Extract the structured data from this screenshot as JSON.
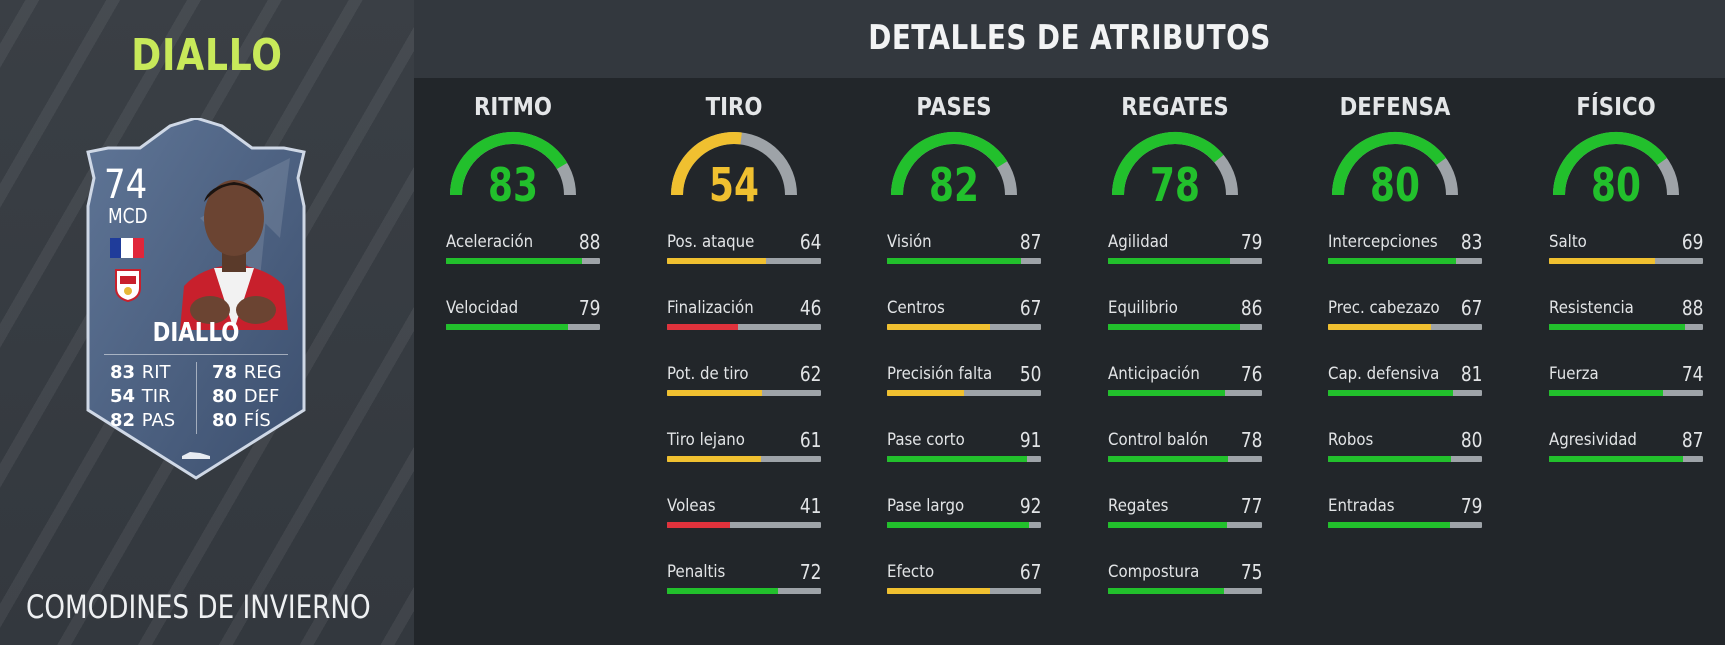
{
  "player": {
    "name": "DIALLO",
    "promo": "COMODINES DE INVIERNO",
    "card": {
      "rating": "74",
      "position": "MCD",
      "name": "DIALLO",
      "stats_left": [
        {
          "value": "83",
          "label": "RIT"
        },
        {
          "value": "54",
          "label": "TIR"
        },
        {
          "value": "82",
          "label": "PAS"
        }
      ],
      "stats_right": [
        {
          "value": "78",
          "label": "REG"
        },
        {
          "value": "80",
          "label": "DEF"
        },
        {
          "value": "80",
          "label": "FÍS"
        }
      ]
    }
  },
  "header": {
    "title": "DETALLES DE ATRIBUTOS"
  },
  "colors": {
    "green": "#22c02c",
    "yellow": "#f0c030",
    "red": "#e0323c",
    "track": "#9ea3a8"
  },
  "groups": [
    {
      "title": "RITMO",
      "value": 83,
      "attributes": [
        {
          "label": "Aceleración",
          "value": 88
        },
        {
          "label": "Velocidad",
          "value": 79
        }
      ]
    },
    {
      "title": "TIRO",
      "value": 54,
      "attributes": [
        {
          "label": "Pos. ataque",
          "value": 64
        },
        {
          "label": "Finalización",
          "value": 46
        },
        {
          "label": "Pot. de tiro",
          "value": 62
        },
        {
          "label": "Tiro lejano",
          "value": 61
        },
        {
          "label": "Voleas",
          "value": 41
        },
        {
          "label": "Penaltis",
          "value": 72
        }
      ]
    },
    {
      "title": "PASES",
      "value": 82,
      "attributes": [
        {
          "label": "Visión",
          "value": 87
        },
        {
          "label": "Centros",
          "value": 67
        },
        {
          "label": "Precisión falta",
          "value": 50
        },
        {
          "label": "Pase corto",
          "value": 91
        },
        {
          "label": "Pase largo",
          "value": 92
        },
        {
          "label": "Efecto",
          "value": 67
        }
      ]
    },
    {
      "title": "REGATES",
      "value": 78,
      "attributes": [
        {
          "label": "Agilidad",
          "value": 79
        },
        {
          "label": "Equilibrio",
          "value": 86
        },
        {
          "label": "Anticipación",
          "value": 76
        },
        {
          "label": "Control balón",
          "value": 78
        },
        {
          "label": "Regates",
          "value": 77
        },
        {
          "label": "Compostura",
          "value": 75
        }
      ]
    },
    {
      "title": "DEFENSA",
      "value": 80,
      "attributes": [
        {
          "label": "Intercepciones",
          "value": 83
        },
        {
          "label": "Prec. cabezazo",
          "value": 67
        },
        {
          "label": "Cap. defensiva",
          "value": 81
        },
        {
          "label": "Robos",
          "value": 80
        },
        {
          "label": "Entradas",
          "value": 79
        }
      ]
    },
    {
      "title": "FÍSICO",
      "value": 80,
      "attributes": [
        {
          "label": "Salto",
          "value": 69
        },
        {
          "label": "Resistencia",
          "value": 88
        },
        {
          "label": "Fuerza",
          "value": 74
        },
        {
          "label": "Agresividad",
          "value": 87
        }
      ]
    }
  ]
}
